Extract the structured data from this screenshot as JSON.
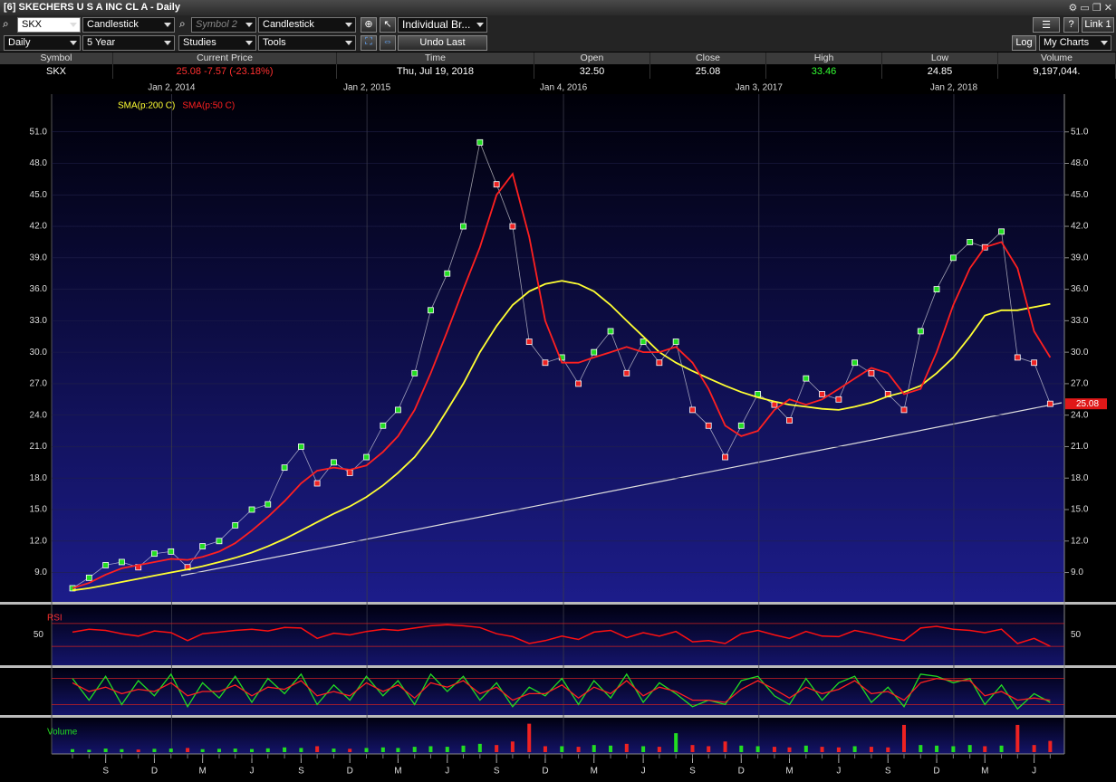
{
  "window": {
    "title": "[6] SKECHERS U S A INC CL A - Daily"
  },
  "toolbar": {
    "symbol": "SKX",
    "chart_style": "Candlestick",
    "symbol2": "Symbol 2",
    "chart_style2": "Candlestick",
    "layout": "Individual Br...",
    "interval": "Daily",
    "range": "5 Year",
    "studies": "Studies",
    "tools": "Tools",
    "undo": "Undo Last",
    "log": "Log",
    "my_charts": "My Charts",
    "link": "Link 1",
    "help": "?"
  },
  "quote": {
    "headers": [
      "Symbol",
      "Current Price",
      "Time",
      "Open",
      "Close",
      "High",
      "Low",
      "Volume"
    ],
    "row": [
      "SKX",
      "25.08 -7.57 (-23.18%)",
      "Thu, Jul 19, 2018",
      "32.50",
      "25.08",
      "33.46",
      "24.85",
      "9,197,044."
    ]
  },
  "chart_data": {
    "type": "line",
    "x": [
      "2013-07",
      "2013-08",
      "2013-09",
      "2013-10",
      "2013-11",
      "2013-12",
      "2014-01",
      "2014-02",
      "2014-03",
      "2014-04",
      "2014-05",
      "2014-06",
      "2014-07",
      "2014-08",
      "2014-09",
      "2014-10",
      "2014-11",
      "2014-12",
      "2015-01",
      "2015-02",
      "2015-03",
      "2015-04",
      "2015-05",
      "2015-06",
      "2015-07",
      "2015-08",
      "2015-09",
      "2015-10",
      "2015-11",
      "2015-12",
      "2016-01",
      "2016-02",
      "2016-03",
      "2016-04",
      "2016-05",
      "2016-06",
      "2016-07",
      "2016-08",
      "2016-09",
      "2016-10",
      "2016-11",
      "2016-12",
      "2017-01",
      "2017-02",
      "2017-03",
      "2017-04",
      "2017-05",
      "2017-06",
      "2017-07",
      "2017-08",
      "2017-09",
      "2017-10",
      "2017-11",
      "2017-12",
      "2018-01",
      "2018-02",
      "2018-03",
      "2018-04",
      "2018-05",
      "2018-06",
      "2018-07"
    ],
    "series": [
      {
        "color": "#ffffff",
        "values": [
          7.5,
          8.5,
          9.7,
          10.0,
          9.5,
          10.8,
          11.0,
          9.5,
          11.5,
          12.0,
          13.5,
          15.0,
          15.5,
          19.0,
          21.0,
          17.5,
          19.5,
          18.5,
          20.0,
          23.0,
          24.5,
          28.0,
          34.0,
          37.5,
          42.0,
          50.0,
          46.0,
          42.0,
          31.0,
          29.0,
          29.5,
          27.0,
          30.0,
          32.0,
          28.0,
          31.0,
          29.0,
          31.0,
          24.5,
          23.0,
          20.0,
          23.0,
          26.0,
          25.0,
          23.5,
          27.5,
          26.0,
          25.5,
          29.0,
          28.0,
          26.0,
          24.5,
          32.0,
          36.0,
          39.0,
          40.5,
          40.0,
          41.5,
          29.5,
          29.0,
          25.08
        ]
      },
      {
        "name": "SMA(p:200 C)",
        "color": "#ffff33",
        "values": [
          7.3,
          7.5,
          7.8,
          8.1,
          8.4,
          8.7,
          9.0,
          9.3,
          9.6,
          10.0,
          10.4,
          10.9,
          11.5,
          12.2,
          13.0,
          13.8,
          14.6,
          15.3,
          16.2,
          17.3,
          18.5,
          20.0,
          22.0,
          24.5,
          27.0,
          30.0,
          32.5,
          34.5,
          35.8,
          36.5,
          36.8,
          36.5,
          35.8,
          34.5,
          33.0,
          31.5,
          30.0,
          29.0,
          28.2,
          27.5,
          26.8,
          26.2,
          25.7,
          25.3,
          25.0,
          24.8,
          24.6,
          24.5,
          24.8,
          25.2,
          25.8,
          26.2,
          26.8,
          28.0,
          29.5,
          31.5,
          33.5,
          34.0,
          34.0,
          34.3,
          34.6
        ]
      },
      {
        "name": "SMA(p:50 C)",
        "color": "#ff2020",
        "values": [
          7.5,
          8.0,
          8.8,
          9.4,
          9.7,
          10.0,
          10.3,
          10.2,
          10.5,
          11.0,
          11.8,
          13.0,
          14.3,
          15.8,
          17.5,
          18.7,
          19.0,
          18.8,
          19.2,
          20.5,
          22.0,
          24.5,
          28.0,
          32.0,
          36.0,
          40.0,
          45.0,
          47.0,
          41.0,
          33.0,
          29.0,
          29.0,
          29.5,
          30.0,
          30.5,
          30.0,
          30.0,
          30.5,
          29.0,
          26.5,
          23.0,
          22.0,
          22.5,
          24.5,
          25.5,
          25.0,
          25.5,
          26.5,
          27.5,
          28.5,
          28.0,
          26.0,
          26.5,
          30.0,
          34.5,
          38.0,
          40.0,
          40.5,
          38.0,
          32.0,
          29.5
        ]
      }
    ],
    "xlim": [
      "2013-07-01",
      "2018-07-19"
    ],
    "xticks": [
      {
        "value": "2014-01-02",
        "label": "Jan 2, 2014"
      },
      {
        "value": "2015-01-02",
        "label": "Jan 2, 2015"
      },
      {
        "value": "2016-01-04",
        "label": "Jan 4, 2016"
      },
      {
        "value": "2017-01-03",
        "label": "Jan 3, 2017"
      },
      {
        "value": "2018-01-02",
        "label": "Jan 2, 2018"
      }
    ],
    "xminor": [
      {
        "value": "2013-09-01",
        "label": "S"
      },
      {
        "value": "2013-12-01",
        "label": "D"
      },
      {
        "value": "2014-03-01",
        "label": "M"
      },
      {
        "value": "2014-06-01",
        "label": "J"
      },
      {
        "value": "2014-09-01",
        "label": "S"
      },
      {
        "value": "2014-12-01",
        "label": "D"
      },
      {
        "value": "2015-03-01",
        "label": "M"
      },
      {
        "value": "2015-06-01",
        "label": "J"
      },
      {
        "value": "2015-09-01",
        "label": "S"
      },
      {
        "value": "2015-12-01",
        "label": "D"
      },
      {
        "value": "2016-03-01",
        "label": "M"
      },
      {
        "value": "2016-06-01",
        "label": "J"
      },
      {
        "value": "2016-09-01",
        "label": "S"
      },
      {
        "value": "2016-12-01",
        "label": "D"
      },
      {
        "value": "2017-03-01",
        "label": "M"
      },
      {
        "value": "2017-06-01",
        "label": "J"
      },
      {
        "value": "2017-09-01",
        "label": "S"
      },
      {
        "value": "2017-12-01",
        "label": "D"
      },
      {
        "value": "2018-03-01",
        "label": "M"
      },
      {
        "value": "2018-06-01",
        "label": "J"
      }
    ],
    "ylim": [
      6.2,
      54.6
    ],
    "yticks": [
      {
        "value": 9,
        "label": "9.0"
      },
      {
        "value": 12,
        "label": "12.0"
      },
      {
        "value": 15,
        "label": "15.0"
      },
      {
        "value": 18,
        "label": "18.0"
      },
      {
        "value": 21,
        "label": "21.0"
      },
      {
        "value": 24,
        "label": "24.0"
      },
      {
        "value": 27,
        "label": "27.0"
      },
      {
        "value": 30,
        "label": "30.0"
      },
      {
        "value": 33,
        "label": "33.0"
      },
      {
        "value": 36,
        "label": "36.0"
      },
      {
        "value": 39,
        "label": "39.0"
      },
      {
        "value": 42,
        "label": "42.0"
      },
      {
        "value": 45,
        "label": "45.0"
      },
      {
        "value": 48,
        "label": "48.0"
      },
      {
        "value": 51,
        "label": "51.0"
      }
    ],
    "grid": true,
    "panels": [
      {
        "name": "RSI",
        "color": "#ff1010",
        "ylim": [
          0,
          100
        ],
        "yticks": [
          50
        ],
        "levels": [
          30,
          70
        ],
        "values": [
          55,
          60,
          58,
          52,
          48,
          57,
          54,
          40,
          52,
          55,
          58,
          60,
          57,
          63,
          62,
          44,
          53,
          50,
          56,
          60,
          58,
          62,
          66,
          68,
          66,
          63,
          52,
          47,
          35,
          40,
          48,
          42,
          55,
          58,
          45,
          54,
          48,
          56,
          38,
          40,
          35,
          52,
          58,
          50,
          44,
          56,
          48,
          47,
          58,
          52,
          45,
          40,
          62,
          65,
          60,
          58,
          54,
          60,
          35,
          44,
          30
        ]
      },
      {
        "ylim": [
          0,
          100
        ],
        "levels": [
          20,
          80
        ],
        "series": [
          {
            "color": "#22dd22",
            "values": [
              80,
              30,
              85,
              20,
              75,
              40,
              90,
              15,
              70,
              35,
              85,
              25,
              80,
              45,
              90,
              20,
              65,
              30,
              85,
              40,
              75,
              20,
              90,
              50,
              85,
              30,
              70,
              15,
              60,
              40,
              80,
              20,
              75,
              35,
              90,
              25,
              70,
              45,
              15,
              30,
              20,
              75,
              85,
              40,
              20,
              80,
              30,
              70,
              85,
              25,
              60,
              15,
              90,
              85,
              70,
              80,
              20,
              65,
              10,
              45,
              25
            ]
          },
          {
            "color": "#ff2020",
            "values": [
              70,
              50,
              60,
              45,
              55,
              50,
              70,
              40,
              50,
              50,
              65,
              40,
              60,
              55,
              75,
              40,
              50,
              40,
              70,
              50,
              65,
              35,
              70,
              60,
              75,
              45,
              60,
              30,
              45,
              45,
              65,
              35,
              60,
              45,
              75,
              40,
              60,
              50,
              30,
              30,
              25,
              55,
              75,
              55,
              35,
              60,
              45,
              55,
              75,
              45,
              50,
              30,
              70,
              80,
              75,
              75,
              40,
              50,
              30,
              35,
              30
            ]
          }
        ]
      },
      {
        "name": "Volume",
        "ylim": [
          0,
          26000000
        ],
        "values": [
          2500000,
          2000000,
          3000000,
          2500000,
          2200000,
          2800000,
          3000000,
          3500000,
          2500000,
          2800000,
          3000000,
          2600000,
          3200000,
          4000000,
          3500000,
          5000000,
          3000000,
          2800000,
          3500000,
          4000000,
          3500000,
          4500000,
          5000000,
          4500000,
          5500000,
          7000000,
          6000000,
          9000000,
          24000000,
          5000000,
          5000000,
          4500000,
          6000000,
          5500000,
          7000000,
          5000000,
          4500000,
          16000000,
          6000000,
          5000000,
          9000000,
          5500000,
          5000000,
          4500000,
          4000000,
          5500000,
          4500000,
          4000000,
          5000000,
          4500000,
          4000000,
          23000000,
          6000000,
          5500000,
          5000000,
          6000000,
          5000000,
          5500000,
          23000000,
          6000000,
          9500000
        ]
      }
    ]
  }
}
